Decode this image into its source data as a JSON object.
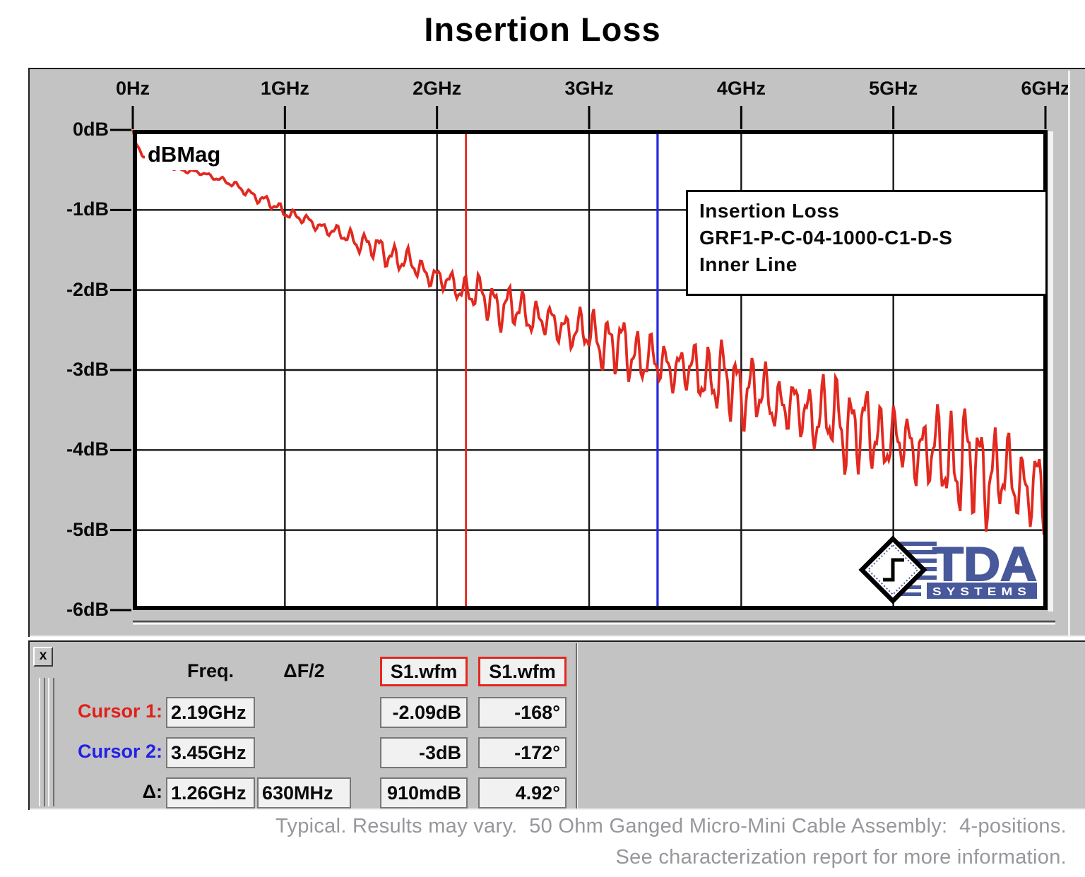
{
  "page": {
    "title": "Insertion Loss",
    "caption_line1": "Typical. Results may vary.  50 Ohm Ganged Micro-Mini Cable Assembly:  4-positions.",
    "caption_line2": "See characterization report for more information."
  },
  "chart_data": {
    "type": "line",
    "title": "Insertion Loss",
    "trace_label": "dBMag",
    "legend_lines": [
      "Insertion Loss",
      "GRF1-P-C-04-1000-C1-D-S",
      "Inner Line"
    ],
    "x_axis": {
      "min_ghz": 0,
      "max_ghz": 6,
      "tick_labels": [
        "0Hz",
        "1GHz",
        "2GHz",
        "3GHz",
        "4GHz",
        "5GHz",
        "6GHz"
      ],
      "grid": true
    },
    "y_axis": {
      "min_db": -6,
      "max_db": 0,
      "tick_labels": [
        "0dB",
        "-1dB",
        "-2dB",
        "-3dB",
        "-4dB",
        "-5dB",
        "-6dB"
      ],
      "grid": true
    },
    "series": [
      {
        "name": "S1.wfm",
        "color": "#E2291F",
        "trend_points_ghz_db": [
          [
            0,
            0
          ],
          [
            0.02,
            -0.18
          ],
          [
            0.06,
            -0.3
          ],
          [
            0.12,
            -0.38
          ],
          [
            0.2,
            -0.44
          ],
          [
            0.3,
            -0.49
          ],
          [
            0.45,
            -0.54
          ],
          [
            0.6,
            -0.63
          ],
          [
            0.8,
            -0.82
          ],
          [
            1.0,
            -1.02
          ],
          [
            1.2,
            -1.18
          ],
          [
            1.4,
            -1.33
          ],
          [
            1.6,
            -1.48
          ],
          [
            1.8,
            -1.65
          ],
          [
            2.0,
            -1.85
          ],
          [
            2.19,
            -2.0
          ],
          [
            2.4,
            -2.18
          ],
          [
            2.6,
            -2.3
          ],
          [
            2.8,
            -2.45
          ],
          [
            3.0,
            -2.55
          ],
          [
            3.2,
            -2.72
          ],
          [
            3.45,
            -2.92
          ],
          [
            3.7,
            -3.02
          ],
          [
            4.0,
            -3.22
          ],
          [
            4.3,
            -3.45
          ],
          [
            4.6,
            -3.62
          ],
          [
            4.9,
            -3.82
          ],
          [
            5.2,
            -4.0
          ],
          [
            5.5,
            -4.18
          ],
          [
            5.8,
            -4.38
          ],
          [
            6.0,
            -4.55
          ]
        ],
        "ripple": {
          "periods_ghz": [
            0.094,
            0.042,
            0.23
          ],
          "weights": [
            0.6,
            0.27,
            0.13
          ],
          "phases_rad": [
            0.0,
            1.2,
            2.1
          ],
          "am_period_ghz": 0.77,
          "am_depth": 0.25,
          "am_phase_rad": 0.9,
          "amplitude_envelope_ghz_db": [
            [
              0,
              0.02
            ],
            [
              0.3,
              0.035
            ],
            [
              0.6,
              0.05
            ],
            [
              1,
              0.08
            ],
            [
              1.5,
              0.15
            ],
            [
              2,
              0.22
            ],
            [
              2.5,
              0.3
            ],
            [
              3,
              0.36
            ],
            [
              3.5,
              0.44
            ],
            [
              4,
              0.5
            ],
            [
              4.5,
              0.56
            ],
            [
              5,
              0.6
            ],
            [
              5.5,
              0.72
            ],
            [
              6,
              0.78
            ]
          ]
        }
      }
    ],
    "cursors": [
      {
        "name": "Cursor 1",
        "x_ghz": 2.19,
        "y_db": -2.09,
        "color": "#E2291F"
      },
      {
        "name": "Cursor 2",
        "x_ghz": 3.45,
        "y_db": -3.0,
        "color": "#2328DC"
      }
    ]
  },
  "cursor_panel": {
    "close_label": "x",
    "columns": {
      "freq": "Freq.",
      "df2": "ΔF/2",
      "s1": "S1.wfm",
      "s2": "S1.wfm"
    },
    "rows": [
      {
        "label": "Cursor 1:",
        "label_color": "#E0201A",
        "freq": "2.19GHz",
        "df2": "",
        "s1": "-2.09dB",
        "s2": "-168°"
      },
      {
        "label": "Cursor 2:",
        "label_color": "#2222E6",
        "freq": "3.45GHz",
        "df2": "",
        "s1": "-3dB",
        "s2": "-172°"
      },
      {
        "label": "Δ:",
        "label_color": "#000000",
        "freq": "1.26GHz",
        "df2": "630MHz",
        "s1": "910mdB",
        "s2": "4.92°"
      }
    ]
  },
  "logo": {
    "brand": "TDA",
    "sub": "SYSTEMS",
    "color": "#47589B"
  },
  "colors": {
    "panel_gray": "#C3C3C3",
    "plot_bg": "#FFFFFF",
    "grid": "#161616",
    "trace_red": "#E2291F",
    "cursor_blue": "#2328DC",
    "caption_gray": "#96979B"
  }
}
